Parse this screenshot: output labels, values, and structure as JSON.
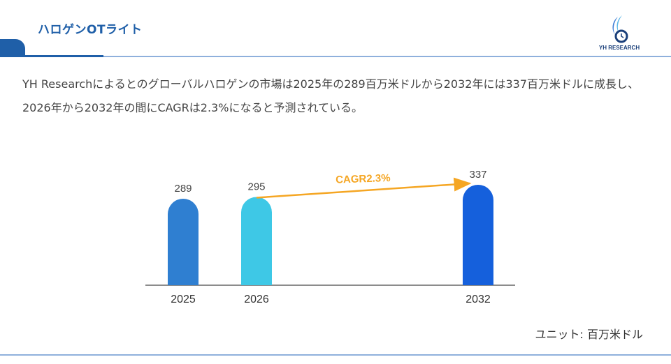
{
  "header": {
    "title": "ハロゲンOTライト",
    "logo_text": "YH RESEARCH"
  },
  "summary": "YH Researchによるとのグローバルハロゲンの市場は2025年の289百万米ドルから2032年には337百万米ドルに成長し、2026年から2032年の間にCAGRは2.3%になると予測されている。",
  "chart_data": {
    "type": "bar",
    "categories": [
      "2025",
      "2026",
      "2032"
    ],
    "values": [
      289,
      295,
      337
    ],
    "data_labels": [
      "289",
      "295",
      "337"
    ],
    "colors": [
      "#2f7fd1",
      "#3ec8e6",
      "#1560dc"
    ],
    "annotation": {
      "text": "CAGR2.3%",
      "from": "2026",
      "to": "2032",
      "color": "#f5a623"
    },
    "unit": "ユニット: 百万米ドル"
  },
  "colors": {
    "brand": "#1f5fa8",
    "accent_line": "#8fb0dc"
  }
}
